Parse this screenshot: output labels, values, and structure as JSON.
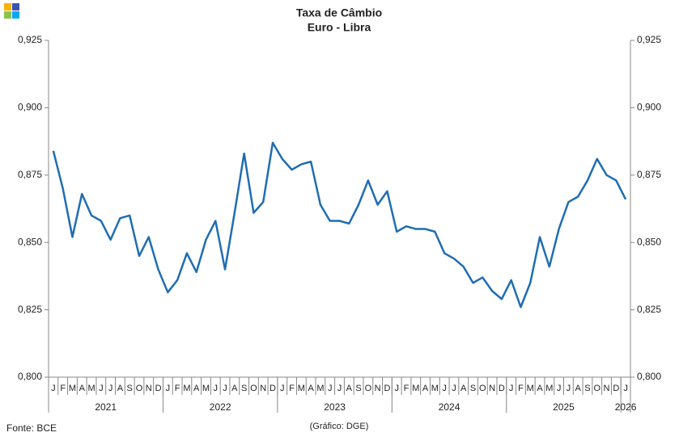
{
  "chart_data": {
    "type": "line",
    "title": "Taxa de Câmbio",
    "subtitle": "Euro - Libra",
    "source": "Fonte: BCE",
    "credit": "(Gráfico: DGE)",
    "categories": [
      "J",
      "F",
      "M",
      "A",
      "M",
      "J",
      "J",
      "A",
      "S",
      "O",
      "N",
      "D",
      "J",
      "F",
      "M",
      "A",
      "M",
      "J",
      "J",
      "A",
      "S",
      "O",
      "N",
      "D",
      "J",
      "F",
      "M",
      "A",
      "M",
      "J",
      "J",
      "A",
      "S",
      "O",
      "N",
      "D",
      "J",
      "F",
      "M",
      "A",
      "M",
      "J",
      "J",
      "A",
      "S",
      "O",
      "N",
      "D",
      "J",
      "F",
      "M",
      "A",
      "M",
      "J",
      "J",
      "A",
      "S",
      "O",
      "N",
      "D",
      "J"
    ],
    "years": [
      "2021",
      "2022",
      "2023",
      "2024",
      "2025",
      "2026"
    ],
    "series": [
      {
        "color": "#1f6db3",
        "values": [
          0.884,
          0.87,
          0.852,
          0.868,
          0.86,
          0.858,
          0.851,
          0.859,
          0.86,
          0.845,
          0.852,
          0.84,
          0.8315,
          0.836,
          0.846,
          0.839,
          0.851,
          0.858,
          0.84,
          0.861,
          0.883,
          0.861,
          0.865,
          0.887,
          0.881,
          0.877,
          0.879,
          0.88,
          0.864,
          0.858,
          0.858,
          0.857,
          0.864,
          0.873,
          0.864,
          0.869,
          0.854,
          0.856,
          0.855,
          0.855,
          0.854,
          0.846,
          0.844,
          0.841,
          0.835,
          0.837,
          0.832,
          0.829,
          0.836,
          0.826,
          0.835,
          0.852,
          0.841,
          0.855,
          0.865,
          0.867,
          0.873,
          0.881,
          0.875,
          0.873,
          0.866
        ]
      }
    ],
    "ylim": [
      0.8,
      0.925
    ],
    "yticks": [
      {
        "value": 0.8,
        "label": "0,800"
      },
      {
        "value": 0.825,
        "label": "0,825"
      },
      {
        "value": 0.85,
        "label": "0,850"
      },
      {
        "value": 0.875,
        "label": "0,875"
      },
      {
        "value": 0.9,
        "label": "0,900"
      },
      {
        "value": 0.925,
        "label": "0,925"
      }
    ],
    "y2lim": [
      0.8,
      0.925
    ],
    "y2ticks": [
      {
        "value": 0.8,
        "label": "0,800"
      },
      {
        "value": 0.825,
        "label": "0,825"
      },
      {
        "value": 0.85,
        "label": "0,850"
      },
      {
        "value": 0.875,
        "label": "0,875"
      },
      {
        "value": 0.9,
        "label": "0,900"
      },
      {
        "value": 0.925,
        "label": "0,925"
      }
    ]
  }
}
